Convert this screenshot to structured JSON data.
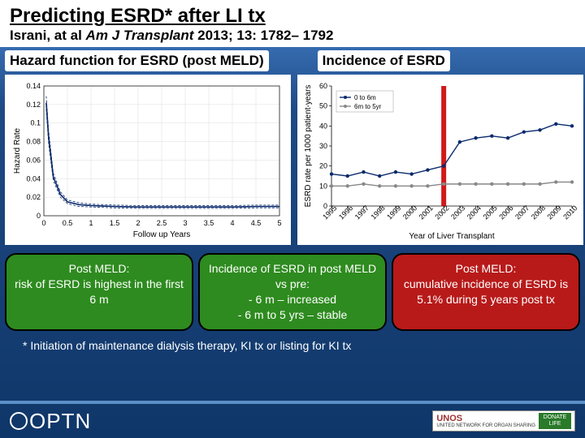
{
  "header": {
    "title": "Predicting ESRD* after LI tx",
    "citation_prefix": "Israni, at al ",
    "citation_journal": "Am J Transplant",
    "citation_suffix": " 2013; 13: 1782– 1792"
  },
  "subheads": {
    "left": "Hazard function for ESRD (post MELD)",
    "right": "Incidence of ESRD"
  },
  "chart_left": {
    "type": "line",
    "xlabel": "Follow up Years",
    "ylabel": "Hazard Rate",
    "xlim": [
      0,
      5
    ],
    "ylim": [
      0,
      0.14
    ],
    "xticks": [
      0,
      0.5,
      1,
      1.5,
      2,
      2.5,
      3,
      3.5,
      4,
      4.5,
      5
    ],
    "yticks": [
      0,
      0.02,
      0.04,
      0.06,
      0.08,
      0.1,
      0.12,
      0.14
    ],
    "line_color": "#0a2a6b",
    "ci_color": "#0a2a6b",
    "grid_color": "#dddddd",
    "series": {
      "x": [
        0.05,
        0.1,
        0.2,
        0.35,
        0.5,
        0.75,
        1.0,
        1.5,
        2.0,
        2.5,
        3.0,
        3.5,
        4.0,
        4.5,
        5.0
      ],
      "y": [
        0.122,
        0.085,
        0.042,
        0.023,
        0.015,
        0.012,
        0.011,
        0.01,
        0.0095,
        0.0095,
        0.0095,
        0.0095,
        0.0095,
        0.01,
        0.01
      ],
      "lo": [
        0.115,
        0.078,
        0.038,
        0.02,
        0.013,
        0.01,
        0.0095,
        0.0085,
        0.008,
        0.008,
        0.008,
        0.008,
        0.008,
        0.0085,
        0.0085
      ],
      "hi": [
        0.129,
        0.092,
        0.046,
        0.026,
        0.017,
        0.014,
        0.0125,
        0.0115,
        0.011,
        0.011,
        0.011,
        0.011,
        0.011,
        0.0115,
        0.0115
      ]
    }
  },
  "chart_right": {
    "type": "line",
    "xlabel": "Year of Liver Transplant",
    "ylabel": "ESRD rate per 1000 patient-years",
    "ylim": [
      0,
      60
    ],
    "yticks": [
      0,
      10,
      20,
      30,
      40,
      50,
      60
    ],
    "xticks": [
      "1995",
      "1996",
      "1997",
      "1998",
      "1999",
      "2000",
      "2001",
      "2002",
      "2003",
      "2004",
      "2005",
      "2006",
      "2007",
      "2008",
      "2009",
      "2010"
    ],
    "legend": [
      "0 to 6m",
      "6m to 5yr"
    ],
    "colors": {
      "s1": "#0a2a6b",
      "s2": "#888888"
    },
    "marker": "circle",
    "highlight_x_index": 7,
    "highlight_color": "#cc0000",
    "series1_y": [
      16,
      15,
      17,
      15,
      17,
      16,
      18,
      20,
      32,
      34,
      35,
      34,
      37,
      38,
      41,
      40
    ],
    "series2_y": [
      10,
      10,
      11,
      10,
      10,
      10,
      10,
      11,
      11,
      11,
      11,
      11,
      11,
      11,
      12,
      12
    ]
  },
  "boxes": [
    {
      "color": "green",
      "title": "Post MELD:",
      "lines": [
        "risk of ESRD is highest in the first 6 m"
      ]
    },
    {
      "color": "green",
      "title": "Incidence of ESRD in post MELD vs pre:",
      "lines": [
        "- 6 m – increased",
        "- 6 m to 5 yrs – stable"
      ]
    },
    {
      "color": "red",
      "title": "Post MELD:",
      "lines": [
        "cumulative incidence of ESRD is 5.1% during 5 years post tx"
      ]
    }
  ],
  "footnote": "* Initiation of maintenance dialysis therapy, KI tx or listing for KI tx",
  "footer": {
    "left_logo": "OPTN",
    "right_main": "UNOS",
    "right_sub": "UNITED NETWORK FOR ORGAN SHARING",
    "donate": "DONATE LIFE"
  }
}
